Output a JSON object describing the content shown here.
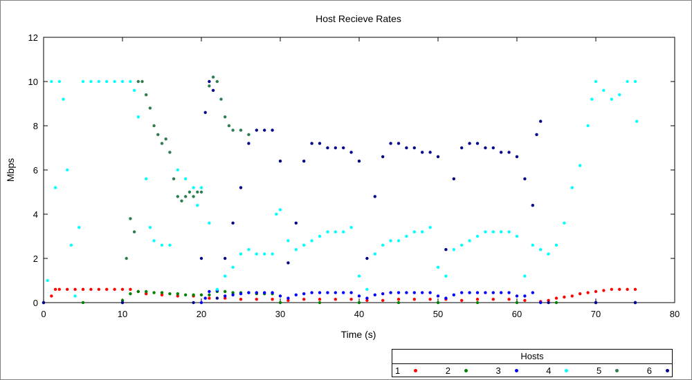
{
  "chart_data": {
    "type": "scatter",
    "title": "Host Recieve Rates",
    "xlabel": "Time (s)",
    "ylabel": "Mbps",
    "xlim": [
      0,
      80
    ],
    "ylim": [
      0,
      12
    ],
    "x_ticks": [
      0,
      10,
      20,
      30,
      40,
      50,
      60,
      70,
      80
    ],
    "y_ticks": [
      0,
      2,
      4,
      6,
      8,
      10,
      12
    ],
    "legend_title": "Hosts",
    "legend_position": "bottom-right",
    "series": [
      {
        "name": "1",
        "color": "#ff0000",
        "points": [
          [
            1,
            0.3
          ],
          [
            1.5,
            0.6
          ],
          [
            2,
            0.6
          ],
          [
            3,
            0.6
          ],
          [
            4,
            0.6
          ],
          [
            5,
            0.6
          ],
          [
            6,
            0.6
          ],
          [
            7,
            0.6
          ],
          [
            8,
            0.6
          ],
          [
            9,
            0.6
          ],
          [
            10,
            0.6
          ],
          [
            11,
            0.6
          ],
          [
            12,
            0.5
          ],
          [
            13,
            0.4
          ],
          [
            15,
            0.35
          ],
          [
            17,
            0.3
          ],
          [
            19,
            0.3
          ],
          [
            21,
            0.2
          ],
          [
            23,
            0.2
          ],
          [
            25,
            0.15
          ],
          [
            27,
            0.15
          ],
          [
            29,
            0.15
          ],
          [
            31,
            0.1
          ],
          [
            33,
            0.15
          ],
          [
            35,
            0.15
          ],
          [
            37,
            0.15
          ],
          [
            39,
            0.15
          ],
          [
            41,
            0.1
          ],
          [
            43,
            0.1
          ],
          [
            45,
            0.15
          ],
          [
            47,
            0.15
          ],
          [
            49,
            0.15
          ],
          [
            51,
            0.15
          ],
          [
            53,
            0.1
          ],
          [
            55,
            0.15
          ],
          [
            57,
            0.15
          ],
          [
            59,
            0.15
          ],
          [
            61,
            0.1
          ],
          [
            63,
            0.05
          ],
          [
            64,
            0.1
          ],
          [
            65,
            0.2
          ],
          [
            66,
            0.25
          ],
          [
            67,
            0.3
          ],
          [
            68,
            0.4
          ],
          [
            69,
            0.45
          ],
          [
            70,
            0.5
          ],
          [
            71,
            0.55
          ],
          [
            72,
            0.6
          ],
          [
            73,
            0.6
          ],
          [
            74,
            0.6
          ],
          [
            75,
            0.6
          ]
        ]
      },
      {
        "name": "2",
        "color": "#008000",
        "points": [
          [
            0,
            0
          ],
          [
            5,
            0
          ],
          [
            10,
            0.1
          ],
          [
            11,
            0.4
          ],
          [
            12,
            0.5
          ],
          [
            13,
            0.5
          ],
          [
            14,
            0.45
          ],
          [
            15,
            0.45
          ],
          [
            16,
            0.4
          ],
          [
            17,
            0.4
          ],
          [
            18,
            0.35
          ],
          [
            19,
            0.35
          ],
          [
            20,
            0.35
          ],
          [
            21,
            0.35
          ],
          [
            22,
            0.5
          ],
          [
            23,
            0.5
          ],
          [
            24,
            0.45
          ],
          [
            25,
            0.45
          ],
          [
            26,
            0.45
          ],
          [
            27,
            0.4
          ],
          [
            28,
            0.4
          ],
          [
            29,
            0.4
          ],
          [
            30,
            0
          ],
          [
            35,
            0
          ],
          [
            40,
            0
          ],
          [
            45,
            0
          ],
          [
            50,
            0
          ],
          [
            55,
            0
          ],
          [
            60,
            0
          ],
          [
            65,
            0
          ],
          [
            70,
            0
          ],
          [
            75,
            0
          ]
        ]
      },
      {
        "name": "3",
        "color": "#0000ff",
        "points": [
          [
            0,
            0
          ],
          [
            10,
            0
          ],
          [
            20,
            0
          ],
          [
            20.5,
            0.2
          ],
          [
            21,
            0.5
          ],
          [
            22,
            0.55
          ],
          [
            23,
            0.3
          ],
          [
            24,
            0.35
          ],
          [
            25,
            0.4
          ],
          [
            26,
            0.45
          ],
          [
            27,
            0.45
          ],
          [
            28,
            0.45
          ],
          [
            29,
            0.45
          ],
          [
            30,
            0.3
          ],
          [
            31,
            0.2
          ],
          [
            32,
            0.35
          ],
          [
            33,
            0.4
          ],
          [
            34,
            0.45
          ],
          [
            35,
            0.45
          ],
          [
            36,
            0.45
          ],
          [
            37,
            0.45
          ],
          [
            38,
            0.45
          ],
          [
            39,
            0.45
          ],
          [
            40,
            0.3
          ],
          [
            41,
            0.2
          ],
          [
            42,
            0.35
          ],
          [
            43,
            0.4
          ],
          [
            44,
            0.45
          ],
          [
            45,
            0.45
          ],
          [
            46,
            0.45
          ],
          [
            47,
            0.45
          ],
          [
            48,
            0.45
          ],
          [
            49,
            0.45
          ],
          [
            50,
            0.3
          ],
          [
            51,
            0.2
          ],
          [
            52,
            0.35
          ],
          [
            53,
            0.45
          ],
          [
            54,
            0.45
          ],
          [
            55,
            0.45
          ],
          [
            56,
            0.45
          ],
          [
            57,
            0.45
          ],
          [
            58,
            0.45
          ],
          [
            59,
            0.45
          ],
          [
            60,
            0.3
          ],
          [
            61,
            0.3
          ],
          [
            62,
            0.45
          ],
          [
            63,
            0
          ],
          [
            70,
            0
          ],
          [
            75,
            0
          ]
        ]
      },
      {
        "name": "4",
        "color": "#00ffff",
        "points": [
          [
            0.5,
            1
          ],
          [
            1,
            10
          ],
          [
            1.5,
            5.2
          ],
          [
            2,
            10
          ],
          [
            2.5,
            9.2
          ],
          [
            3,
            6
          ],
          [
            3.5,
            2.6
          ],
          [
            4,
            0.3
          ],
          [
            4.5,
            3.4
          ],
          [
            5,
            10
          ],
          [
            6,
            10
          ],
          [
            7,
            10
          ],
          [
            8,
            10
          ],
          [
            9,
            10
          ],
          [
            10,
            10
          ],
          [
            11,
            10
          ],
          [
            11.5,
            9.6
          ],
          [
            12,
            8.4
          ],
          [
            13,
            5.6
          ],
          [
            13.5,
            3.4
          ],
          [
            14,
            2.8
          ],
          [
            15,
            2.6
          ],
          [
            16,
            2.6
          ],
          [
            17,
            6
          ],
          [
            18,
            5.6
          ],
          [
            19,
            5.2
          ],
          [
            19.5,
            4.4
          ],
          [
            20,
            5.2
          ],
          [
            21,
            3.6
          ],
          [
            22,
            0.6
          ],
          [
            23,
            1.2
          ],
          [
            24,
            1.6
          ],
          [
            25,
            2.2
          ],
          [
            26,
            2.4
          ],
          [
            27,
            2.2
          ],
          [
            28,
            2.2
          ],
          [
            29,
            2.2
          ],
          [
            29.5,
            4
          ],
          [
            30,
            4.2
          ],
          [
            31,
            2.8
          ],
          [
            32,
            2.4
          ],
          [
            33,
            2.6
          ],
          [
            34,
            2.8
          ],
          [
            35,
            3
          ],
          [
            36,
            3.2
          ],
          [
            37,
            3.2
          ],
          [
            38,
            3.2
          ],
          [
            39,
            3.4
          ],
          [
            40,
            1.2
          ],
          [
            41,
            0.6
          ],
          [
            42,
            2.2
          ],
          [
            43,
            2.6
          ],
          [
            44,
            2.8
          ],
          [
            45,
            2.8
          ],
          [
            46,
            3
          ],
          [
            47,
            3.2
          ],
          [
            48,
            3.2
          ],
          [
            49,
            3.4
          ],
          [
            50,
            1.6
          ],
          [
            51,
            1.2
          ],
          [
            52,
            2.4
          ],
          [
            53,
            2.6
          ],
          [
            54,
            2.8
          ],
          [
            55,
            3
          ],
          [
            56,
            3.2
          ],
          [
            57,
            3.2
          ],
          [
            58,
            3.2
          ],
          [
            59,
            3.2
          ],
          [
            60,
            3
          ],
          [
            61,
            1.2
          ],
          [
            62,
            2.6
          ],
          [
            63,
            2.4
          ],
          [
            64,
            2.2
          ],
          [
            65,
            2.6
          ],
          [
            66,
            3.6
          ],
          [
            67,
            5.2
          ],
          [
            68,
            6.2
          ],
          [
            69,
            8
          ],
          [
            69.5,
            9.2
          ],
          [
            70,
            10
          ],
          [
            71,
            9.6
          ],
          [
            72,
            9.2
          ],
          [
            73,
            9.4
          ],
          [
            74,
            10
          ],
          [
            75,
            10
          ],
          [
            75.2,
            8.2
          ]
        ]
      },
      {
        "name": "5",
        "color": "#2e7d4f",
        "points": [
          [
            10.5,
            2
          ],
          [
            11,
            3.8
          ],
          [
            11.5,
            3.2
          ],
          [
            12,
            10
          ],
          [
            12.5,
            10
          ],
          [
            13,
            9.4
          ],
          [
            13.5,
            8.8
          ],
          [
            14,
            8
          ],
          [
            14.5,
            7.6
          ],
          [
            15,
            7.2
          ],
          [
            15.5,
            7.4
          ],
          [
            16,
            6.8
          ],
          [
            16.5,
            5.6
          ],
          [
            17,
            4.8
          ],
          [
            17.5,
            4.6
          ],
          [
            18,
            4.8
          ],
          [
            18.5,
            5
          ],
          [
            19,
            4.8
          ],
          [
            19.5,
            5
          ],
          [
            20,
            5
          ],
          [
            21,
            9.8
          ],
          [
            21.5,
            10.2
          ],
          [
            22,
            10
          ],
          [
            22.5,
            9.2
          ],
          [
            23,
            8.4
          ],
          [
            23.5,
            8
          ],
          [
            24,
            7.8
          ],
          [
            25,
            7.8
          ],
          [
            26,
            7.6
          ]
        ]
      },
      {
        "name": "6",
        "color": "#00008b",
        "points": [
          [
            0,
            0
          ],
          [
            10,
            0
          ],
          [
            19,
            0
          ],
          [
            20,
            2
          ],
          [
            20.5,
            8.6
          ],
          [
            21,
            10
          ],
          [
            21.5,
            9.6
          ],
          [
            22,
            0.2
          ],
          [
            23,
            2
          ],
          [
            24,
            3.6
          ],
          [
            25,
            5.2
          ],
          [
            26,
            7.2
          ],
          [
            27,
            7.8
          ],
          [
            28,
            7.8
          ],
          [
            29,
            7.8
          ],
          [
            30,
            6.4
          ],
          [
            31,
            1.8
          ],
          [
            32,
            3.6
          ],
          [
            33,
            6.4
          ],
          [
            34,
            7.2
          ],
          [
            35,
            7.2
          ],
          [
            36,
            7
          ],
          [
            37,
            7
          ],
          [
            38,
            7
          ],
          [
            39,
            6.8
          ],
          [
            40,
            6.4
          ],
          [
            41,
            2
          ],
          [
            42,
            4.8
          ],
          [
            43,
            6.6
          ],
          [
            44,
            7.2
          ],
          [
            45,
            7.2
          ],
          [
            46,
            7
          ],
          [
            47,
            7
          ],
          [
            48,
            6.8
          ],
          [
            49,
            6.8
          ],
          [
            50,
            6.6
          ],
          [
            51,
            2.4
          ],
          [
            52,
            5.6
          ],
          [
            53,
            7
          ],
          [
            54,
            7.2
          ],
          [
            55,
            7.2
          ],
          [
            56,
            7
          ],
          [
            57,
            7
          ],
          [
            58,
            6.8
          ],
          [
            59,
            6.8
          ],
          [
            60,
            6.6
          ],
          [
            61,
            5.6
          ],
          [
            62,
            4.4
          ],
          [
            62.5,
            7.6
          ],
          [
            63,
            8.2
          ],
          [
            64,
            0
          ],
          [
            70,
            0
          ],
          [
            75,
            0
          ]
        ]
      }
    ]
  }
}
